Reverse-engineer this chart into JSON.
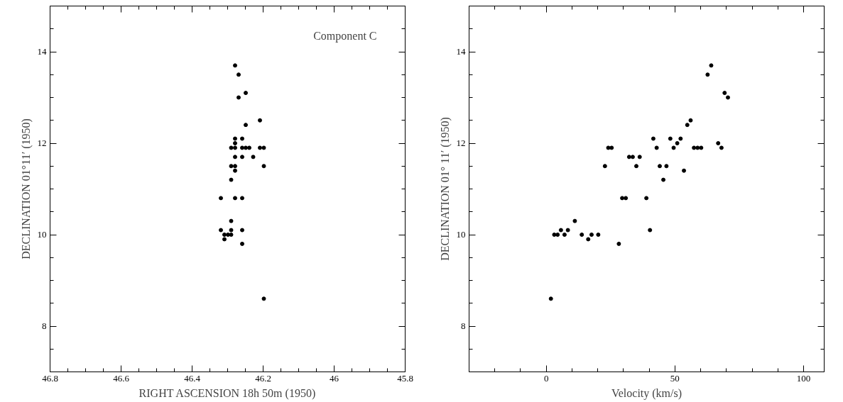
{
  "chart_data": [
    {
      "type": "scatter",
      "xlabel": "RIGHT ASCENSION 18h 50m (1950)",
      "ylabel": "DECLINATION 01°11′ (1950)",
      "annotations": [
        "Component C"
      ],
      "marker": "circle",
      "grid": false,
      "color": "#000000",
      "xlim": [
        46.8,
        45.8
      ],
      "ylim": [
        7,
        15
      ],
      "xticks": [
        46.8,
        {
          "value": 46.75,
          "label": null
        },
        {
          "value": 46.7,
          "label": null
        },
        {
          "value": 46.65,
          "label": null
        },
        46.6,
        {
          "value": 46.55,
          "label": null
        },
        {
          "value": 46.5,
          "label": null
        },
        {
          "value": 46.45,
          "label": null
        },
        46.4,
        {
          "value": 46.35,
          "label": null
        },
        {
          "value": 46.3,
          "label": null
        },
        {
          "value": 46.25,
          "label": null
        },
        46.2,
        {
          "value": 46.15,
          "label": null
        },
        {
          "value": 46.1,
          "label": null
        },
        {
          "value": 46.05,
          "label": null
        },
        46,
        {
          "value": 45.95,
          "label": null
        },
        {
          "value": 45.9,
          "label": null
        },
        {
          "value": 45.85,
          "label": null
        },
        45.8
      ],
      "yticks": [
        {
          "value": 7.5,
          "label": null
        },
        8,
        {
          "value": 8.5,
          "label": null
        },
        {
          "value": 9,
          "label": null
        },
        {
          "value": 9.5,
          "label": null
        },
        10,
        {
          "value": 10.5,
          "label": null
        },
        {
          "value": 11,
          "label": null
        },
        {
          "value": 11.5,
          "label": null
        },
        12,
        {
          "value": 12.5,
          "label": null
        },
        {
          "value": 13,
          "label": null
        },
        {
          "value": 13.5,
          "label": null
        },
        14,
        {
          "value": 14.5,
          "label": null
        }
      ],
      "x": [
        46.279,
        46.269,
        46.249,
        46.269,
        46.209,
        46.249,
        46.279,
        46.259,
        46.279,
        46.29,
        46.279,
        46.259,
        46.249,
        46.239,
        46.209,
        46.198,
        46.279,
        46.259,
        46.228,
        46.29,
        46.279,
        46.198,
        46.279,
        46.29,
        46.319,
        46.279,
        46.259,
        46.29,
        46.319,
        46.29,
        46.259,
        46.309,
        46.299,
        46.29,
        46.309,
        46.259,
        46.198
      ],
      "values": [
        13.7,
        13.5,
        13.1,
        13.0,
        12.5,
        12.4,
        12.1,
        12.1,
        12.0,
        11.9,
        11.9,
        11.9,
        11.9,
        11.9,
        11.9,
        11.9,
        11.7,
        11.7,
        11.7,
        11.5,
        11.5,
        11.5,
        11.4,
        11.2,
        10.8,
        10.8,
        10.8,
        10.3,
        10.1,
        10.1,
        10.1,
        10.0,
        10.0,
        10.0,
        9.9,
        9.8,
        8.6
      ]
    },
    {
      "type": "scatter",
      "xlabel": "Velocity (km/s)",
      "ylabel": "DECLINATION 01° 11′ (1950)",
      "marker": "circle",
      "grid": false,
      "color": "#000000",
      "xlim": [
        -30,
        108
      ],
      "ylim": [
        7,
        15
      ],
      "xticks": [
        {
          "value": -20,
          "label": null
        },
        {
          "value": -10,
          "label": null
        },
        0,
        {
          "value": 10,
          "label": null
        },
        {
          "value": 20,
          "label": null
        },
        {
          "value": 30,
          "label": null
        },
        {
          "value": 40,
          "label": null
        },
        50,
        {
          "value": 60,
          "label": null
        },
        {
          "value": 70,
          "label": null
        },
        {
          "value": 80,
          "label": null
        },
        {
          "value": 90,
          "label": null
        },
        100
      ],
      "yticks": [
        {
          "value": 7.5,
          "label": null
        },
        8,
        {
          "value": 8.5,
          "label": null
        },
        {
          "value": 9,
          "label": null
        },
        {
          "value": 9.5,
          "label": null
        },
        10,
        {
          "value": 10.5,
          "label": null
        },
        {
          "value": 11,
          "label": null
        },
        {
          "value": 11.5,
          "label": null
        },
        12,
        {
          "value": 12.5,
          "label": null
        },
        {
          "value": 13,
          "label": null
        },
        {
          "value": 13.5,
          "label": null
        },
        14,
        {
          "value": 14.5,
          "label": null
        }
      ],
      "x": [
        64.1,
        62.7,
        69.3,
        70.6,
        56.1,
        54.8,
        41.6,
        48.2,
        52.2,
        50.9,
        66.8,
        24.1,
        25.4,
        42.9,
        49.5,
        57.4,
        58.8,
        60.2,
        68.1,
        32.2,
        33.6,
        36.3,
        22.8,
        35.0,
        44.1,
        46.7,
        53.5,
        45.5,
        29.5,
        30.9,
        38.9,
        11.1,
        5.7,
        8.4,
        40.3,
        3.1,
        4.4,
        7.1,
        13.8,
        17.6,
        20.2,
        16.3,
        28.2,
        1.8
      ],
      "values": [
        13.7,
        13.5,
        13.1,
        13.0,
        12.5,
        12.4,
        12.1,
        12.1,
        12.1,
        12.0,
        12.0,
        11.9,
        11.9,
        11.9,
        11.9,
        11.9,
        11.9,
        11.9,
        11.9,
        11.7,
        11.7,
        11.7,
        11.5,
        11.5,
        11.5,
        11.5,
        11.4,
        11.2,
        10.8,
        10.8,
        10.8,
        10.3,
        10.1,
        10.1,
        10.1,
        10.0,
        10.0,
        10.0,
        10.0,
        10.0,
        10.0,
        9.9,
        9.8,
        8.6
      ]
    }
  ]
}
